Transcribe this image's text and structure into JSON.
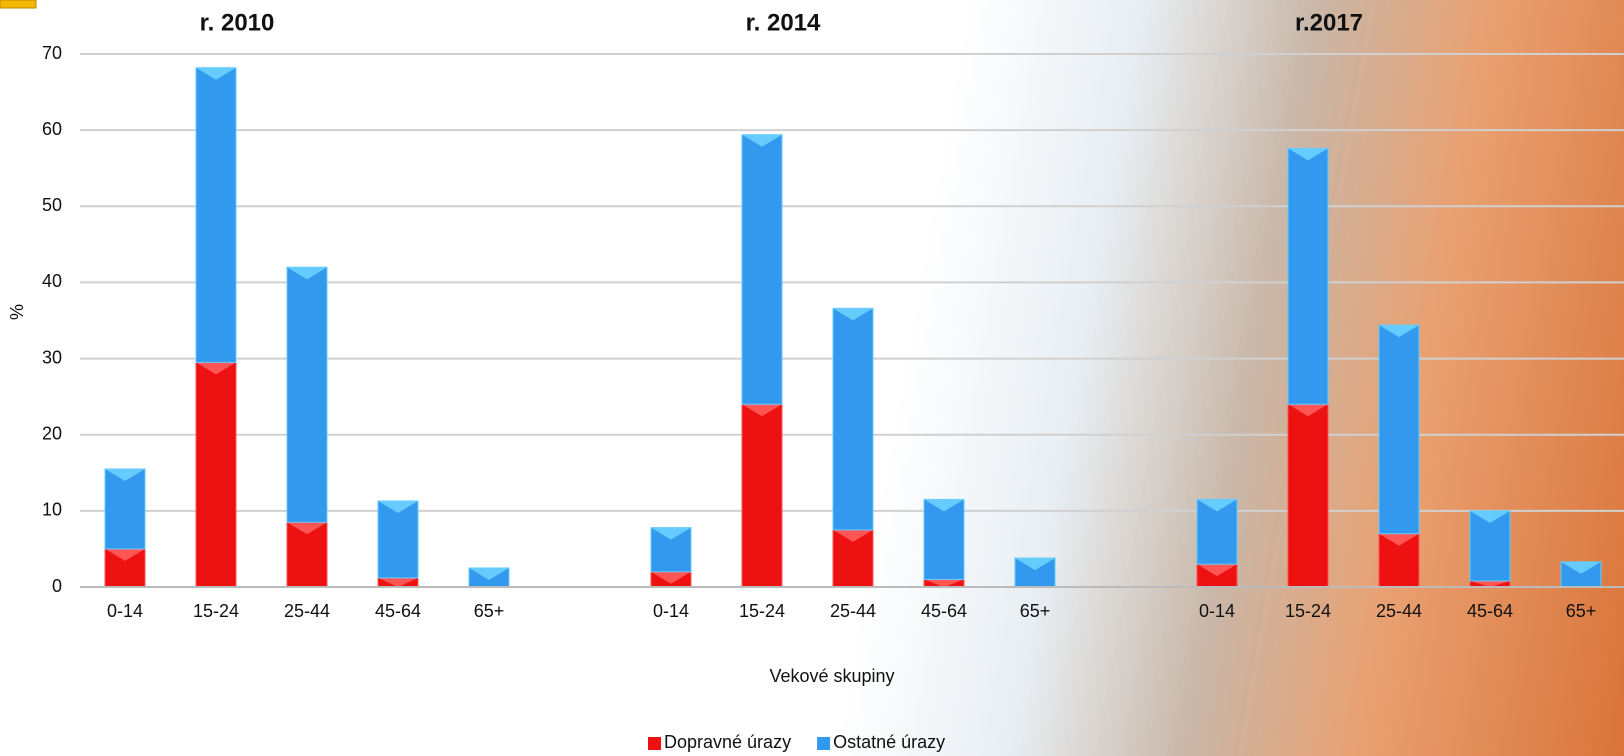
{
  "chart_data": {
    "type": "stacked_bar",
    "groups": [
      "r. 2010",
      "r. 2014",
      "r.2017"
    ],
    "categories": [
      "0-14",
      "15-24",
      "25-44",
      "45-64",
      "65+",
      null,
      "0-14",
      "15-24",
      "25-44",
      "45-64",
      "65+",
      null,
      "0-14",
      "15-24",
      "25-44",
      "45-64",
      "65+"
    ],
    "series": [
      {
        "name": "Dopravné úrazy",
        "color": "#ee1111",
        "values": [
          5,
          29.5,
          8.5,
          1.2,
          0,
          null,
          2,
          24,
          7.5,
          1,
          0,
          null,
          3,
          24,
          7,
          0.8,
          0
        ]
      },
      {
        "name": "Ostatné úrazy",
        "color": "#3399ee",
        "values": [
          10.5,
          38.7,
          33.5,
          10.1,
          2.5,
          null,
          5.8,
          35.4,
          29.1,
          10.5,
          3.8,
          null,
          8.5,
          33.6,
          27.4,
          9.2,
          3.3
        ]
      }
    ],
    "ylabel": "%",
    "xlabel": "Vekové skupiny",
    "ylim": [
      0,
      70
    ],
    "yticks": [
      0,
      10,
      20,
      30,
      40,
      50,
      60,
      70
    ],
    "grid": true,
    "legend": "bottom"
  }
}
